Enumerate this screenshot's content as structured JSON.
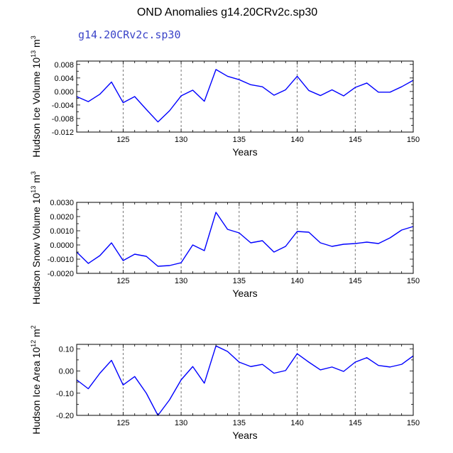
{
  "title": "OND Anomalies g14.20CRv2c.sp30",
  "subtitle": "g14.20CRv2c.sp30",
  "colors": {
    "line": "#0000ff",
    "subtitle": "#3b44c8",
    "axis": "#000000"
  },
  "chart_data": [
    {
      "type": "line",
      "title": "",
      "xlabel": "Years",
      "ylabel_main": "Hudson Ice Volume 10",
      "ylabel_exp": "13",
      "ylabel_unit": " m",
      "ylabel_unit_exp": "3",
      "xlim": [
        121,
        150
      ],
      "ylim": [
        -0.012,
        0.009
      ],
      "xticks": [
        125,
        130,
        135,
        140,
        145,
        150
      ],
      "xtick_labels": [
        "125",
        "130",
        "135",
        "140",
        "145",
        "150"
      ],
      "yticks": [
        -0.012,
        -0.008,
        -0.004,
        0.0,
        0.004,
        0.008
      ],
      "ytick_labels": [
        "-0.012",
        "-0.008",
        "-0.004",
        "0.000",
        "0.004",
        "0.008"
      ],
      "grid": "vertical dashed at major x ticks",
      "series": [
        {
          "name": "g14.20CRv2c.sp30",
          "x": [
            121,
            122,
            123,
            124,
            125,
            126,
            127,
            128,
            129,
            130,
            131,
            132,
            133,
            134,
            135,
            136,
            137,
            138,
            139,
            140,
            141,
            142,
            143,
            144,
            145,
            146,
            147,
            148,
            149,
            150
          ],
          "values": [
            -0.0015,
            -0.003,
            -0.0008,
            0.0028,
            -0.0033,
            -0.0015,
            -0.0053,
            -0.009,
            -0.0057,
            -0.0013,
            0.0004,
            -0.0029,
            0.0065,
            0.0045,
            0.0035,
            0.002,
            0.0014,
            -0.0011,
            0.0005,
            0.0045,
            0.0003,
            -0.0012,
            0.0005,
            -0.0013,
            0.0012,
            0.0025,
            -0.0002,
            -0.0002,
            0.0014,
            0.0033
          ]
        }
      ]
    },
    {
      "type": "line",
      "title": "",
      "xlabel": "Years",
      "ylabel_main": "Hudson Snow Volume 10",
      "ylabel_exp": "13",
      "ylabel_unit": " m",
      "ylabel_unit_exp": "3",
      "xlim": [
        121,
        150
      ],
      "ylim": [
        -0.002,
        0.003
      ],
      "xticks": [
        125,
        130,
        135,
        140,
        145,
        150
      ],
      "xtick_labels": [
        "125",
        "130",
        "135",
        "140",
        "145",
        "150"
      ],
      "yticks": [
        -0.002,
        -0.001,
        0.0,
        0.001,
        0.002,
        0.003
      ],
      "ytick_labels": [
        "-0.0020",
        "-0.0010",
        "0.0000",
        "0.0010",
        "0.0020",
        "0.0030"
      ],
      "grid": "vertical dashed at major x ticks",
      "series": [
        {
          "name": "g14.20CRv2c.sp30",
          "x": [
            121,
            122,
            123,
            124,
            125,
            126,
            127,
            128,
            129,
            130,
            131,
            132,
            133,
            134,
            135,
            136,
            137,
            138,
            139,
            140,
            141,
            142,
            143,
            144,
            145,
            146,
            147,
            148,
            149,
            150
          ],
          "values": [
            -0.0005,
            -0.0013,
            -0.00075,
            0.00015,
            -0.0011,
            -0.00065,
            -0.0008,
            -0.0015,
            -0.00145,
            -0.00125,
            0.0,
            -0.0004,
            0.0023,
            0.0011,
            0.00085,
            0.00015,
            0.0003,
            -0.0005,
            -0.0001,
            0.00095,
            0.0009,
            0.00015,
            -0.0001,
            5e-05,
            0.0001,
            0.0002,
            0.0001,
            0.0005,
            0.00105,
            0.0013
          ]
        }
      ]
    },
    {
      "type": "line",
      "title": "",
      "xlabel": "Years",
      "ylabel_main": "Hudson Ice Area 10",
      "ylabel_exp": "12",
      "ylabel_unit": " m",
      "ylabel_unit_exp": "2",
      "xlim": [
        121,
        150
      ],
      "ylim": [
        -0.2,
        0.12
      ],
      "xticks": [
        125,
        130,
        135,
        140,
        145,
        150
      ],
      "xtick_labels": [
        "125",
        "130",
        "135",
        "140",
        "145",
        "150"
      ],
      "yticks": [
        -0.2,
        -0.1,
        0.0,
        0.1
      ],
      "ytick_labels": [
        "-0.20",
        "-0.10",
        "0.00",
        "0.10"
      ],
      "grid": "vertical dashed at major x ticks",
      "series": [
        {
          "name": "g14.20CRv2c.sp30",
          "x": [
            121,
            122,
            123,
            124,
            125,
            126,
            127,
            128,
            129,
            130,
            131,
            132,
            133,
            134,
            135,
            136,
            137,
            138,
            139,
            140,
            141,
            142,
            143,
            144,
            145,
            146,
            147,
            148,
            149,
            150
          ],
          "values": [
            -0.04,
            -0.08,
            -0.01,
            0.048,
            -0.063,
            -0.025,
            -0.1,
            -0.2,
            -0.13,
            -0.04,
            0.02,
            -0.055,
            0.113,
            0.088,
            0.04,
            0.02,
            0.03,
            -0.01,
            0.002,
            0.078,
            0.04,
            0.005,
            0.018,
            -0.002,
            0.04,
            0.06,
            0.025,
            0.018,
            0.03,
            0.068
          ]
        }
      ]
    }
  ]
}
